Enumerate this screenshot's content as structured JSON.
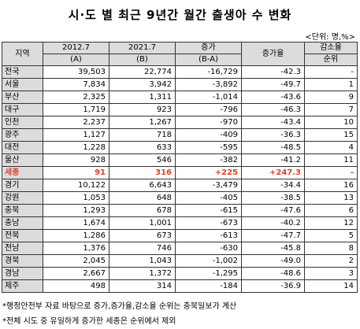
{
  "title": "시·도 별 최근 9년간 월간 출생아 수 변화",
  "unit": "<단위: 명,%>",
  "headers": {
    "region": "지역",
    "y2012": "2012.7",
    "y2012_sub": "(A)",
    "y2021": "2021.7",
    "y2021_sub": "(B)",
    "diff": "증가",
    "diff_sub": "(B-A)",
    "rate": "증가율",
    "rank": "감소율",
    "rank_sub": "순위"
  },
  "rows": [
    {
      "name": "전국",
      "a": "39,503",
      "b": "22,774",
      "diff": "-16,729",
      "rate": "-42.3",
      "rank": "-"
    },
    {
      "name": "서울",
      "a": "7,834",
      "b": "3,942",
      "diff": "-3,892",
      "rate": "-49.7",
      "rank": "1"
    },
    {
      "name": "부산",
      "a": "2,325",
      "b": "1,311",
      "diff": "-1,014",
      "rate": "-43.6",
      "rank": "9"
    },
    {
      "name": "대구",
      "a": "1,719",
      "b": "923",
      "diff": "-796",
      "rate": "-46.3",
      "rank": "7"
    },
    {
      "name": "인천",
      "a": "2,237",
      "b": "1,267",
      "diff": "-970",
      "rate": "-43.4",
      "rank": "10"
    },
    {
      "name": "광주",
      "a": "1,127",
      "b": "718",
      "diff": "-409",
      "rate": "-36.3",
      "rank": "15"
    },
    {
      "name": "대전",
      "a": "1,228",
      "b": "633",
      "diff": "-595",
      "rate": "-48.5",
      "rank": "4"
    },
    {
      "name": "울산",
      "a": "928",
      "b": "546",
      "diff": "-382",
      "rate": "-41.2",
      "rank": "11"
    },
    {
      "name": "세종",
      "a": "91",
      "b": "316",
      "diff": "+225",
      "rate": "+247.3",
      "rank": "-",
      "highlight": true
    },
    {
      "name": "경기",
      "a": "10,122",
      "b": "6,643",
      "diff": "-3,479",
      "rate": "-34.4",
      "rank": "16"
    },
    {
      "name": "강원",
      "a": "1,053",
      "b": "648",
      "diff": "-405",
      "rate": "-38.5",
      "rank": "13"
    },
    {
      "name": "충북",
      "a": "1,293",
      "b": "678",
      "diff": "-615",
      "rate": "-47.6",
      "rank": "6"
    },
    {
      "name": "충남",
      "a": "1,674",
      "b": "1,001",
      "diff": "-673",
      "rate": "-40.2",
      "rank": "12"
    },
    {
      "name": "전북",
      "a": "1,286",
      "b": "673",
      "diff": "-613",
      "rate": "-47.7",
      "rank": "5"
    },
    {
      "name": "전남",
      "a": "1,376",
      "b": "746",
      "diff": "-630",
      "rate": "-45.8",
      "rank": "8"
    },
    {
      "name": "경북",
      "a": "2,045",
      "b": "1,043",
      "diff": "-1,002",
      "rate": "-49.0",
      "rank": "2"
    },
    {
      "name": "경남",
      "a": "2,667",
      "b": "1,372",
      "diff": "-1,295",
      "rate": "-48.6",
      "rank": "3"
    },
    {
      "name": "제주",
      "a": "498",
      "b": "314",
      "diff": "-184",
      "rate": "-36.9",
      "rank": "14"
    }
  ],
  "notes": [
    "*행정안전부 자료 바탕으로 증가,증가율,감소율 순위는 충북일보가 계산",
    "*전체 시도 중 유일하게 증가한 세종은 순위에서 제외"
  ],
  "colors": {
    "header_bg": "#dcdcdc",
    "highlight": "#e0402b"
  }
}
